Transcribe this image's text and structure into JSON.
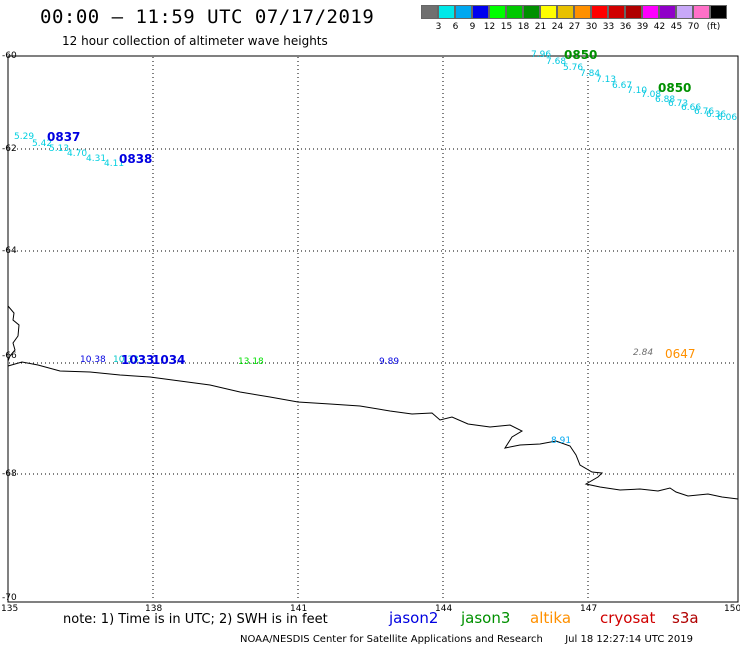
{
  "header": {
    "title": "00:00 – 11:59 UTC 07/17/2019",
    "subtitle": "12 hour collection of altimeter wave heights"
  },
  "legend": {
    "colors": [
      "#707070",
      "#00e8e8",
      "#00a8f0",
      "#0000f0",
      "#00ff00",
      "#00c800",
      "#009000",
      "#ffff00",
      "#e8c000",
      "#ff9000",
      "#ff0000",
      "#d00000",
      "#b00000",
      "#ff00ff",
      "#9000c8",
      "#c8a8f8",
      "#ff70c8",
      "#000000"
    ],
    "labels": [
      "3",
      "6",
      "9",
      "12",
      "15",
      "18",
      "21",
      "24",
      "27",
      "30",
      "33",
      "36",
      "39",
      "42",
      "45",
      "70",
      "(ft)"
    ]
  },
  "axes": {
    "lat_labels": [
      "-60",
      "-62",
      "-64",
      "-66",
      "-68",
      "-70"
    ],
    "lon_labels": [
      "135",
      "138",
      "141",
      "144",
      "147",
      "150"
    ]
  },
  "tracks": {
    "t1": {
      "time": "0837",
      "values": [
        "5.29",
        "5.42",
        "5.13",
        "4.70",
        "4.31",
        "4.11"
      ],
      "time2": "0838"
    },
    "t2": {
      "time": "0850",
      "values": [
        "7.96",
        "7.68",
        "5.76",
        "7.84",
        "7.13",
        "6.67",
        "7.10",
        "7.08",
        "6.88",
        "6.73",
        "6.66",
        "6.76",
        "6.36",
        "6.06"
      ],
      "time2": "0850"
    },
    "t3": {
      "time": "1033",
      "values": [
        "10.38",
        "10.33",
        "13.18",
        "9.89"
      ],
      "time2": "1034"
    },
    "t4": {
      "time": "0647",
      "values": [
        "2.84"
      ]
    },
    "t5": {
      "values": [
        "8.91"
      ]
    }
  },
  "footer": {
    "note": "note: 1) Time is in UTC; 2) SWH is in feet",
    "satellites": [
      {
        "name": "jason2",
        "color": "#0000e0"
      },
      {
        "name": "jason3",
        "color": "#009000"
      },
      {
        "name": "altika",
        "color": "#ff9000"
      },
      {
        "name": "cryosat",
        "color": "#d00000"
      },
      {
        "name": "s3a",
        "color": "#b00000"
      }
    ],
    "credit": "NOAA/NESDIS Center for Satellite Applications and Research",
    "timestamp": "Jul 18 12:27:14 UTC 2019"
  }
}
